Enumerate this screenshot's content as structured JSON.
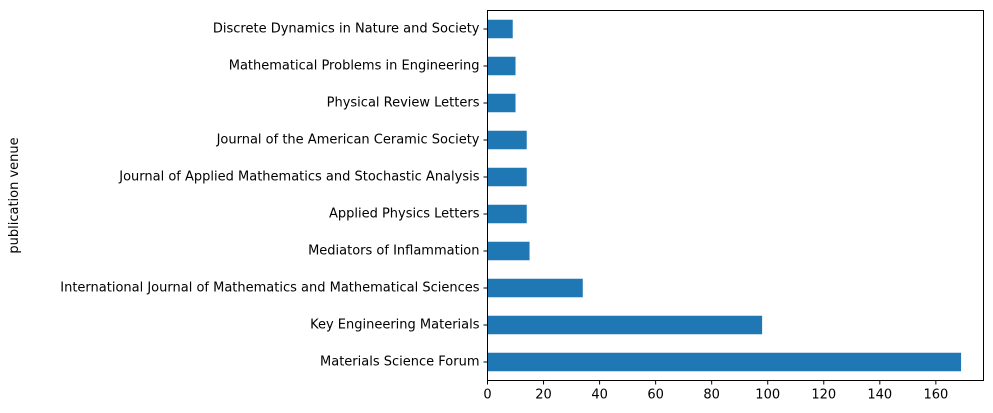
{
  "chart_data": {
    "type": "bar",
    "orientation": "horizontal",
    "categories": [
      "Materials Science Forum",
      "Key Engineering Materials",
      "International Journal of Mathematics and Mathematical Sciences",
      "Mediators of Inflammation",
      "Applied Physics Letters",
      "Journal of Applied Mathematics and Stochastic Analysis",
      "Journal of the American Ceramic Society",
      "Physical Review Letters",
      "Mathematical Problems in Engineering",
      "Discrete Dynamics in Nature and Society"
    ],
    "values": [
      169,
      98,
      34,
      15,
      14,
      14,
      14,
      10,
      10,
      9
    ],
    "ylabel": "publication venue",
    "xlabel": "",
    "xlim": [
      0,
      177
    ],
    "xticks": [
      "0",
      "20",
      "40",
      "60",
      "80",
      "100",
      "120",
      "140",
      "160"
    ],
    "grid": false,
    "legend": "none",
    "bar_color": "#1f77b4"
  }
}
